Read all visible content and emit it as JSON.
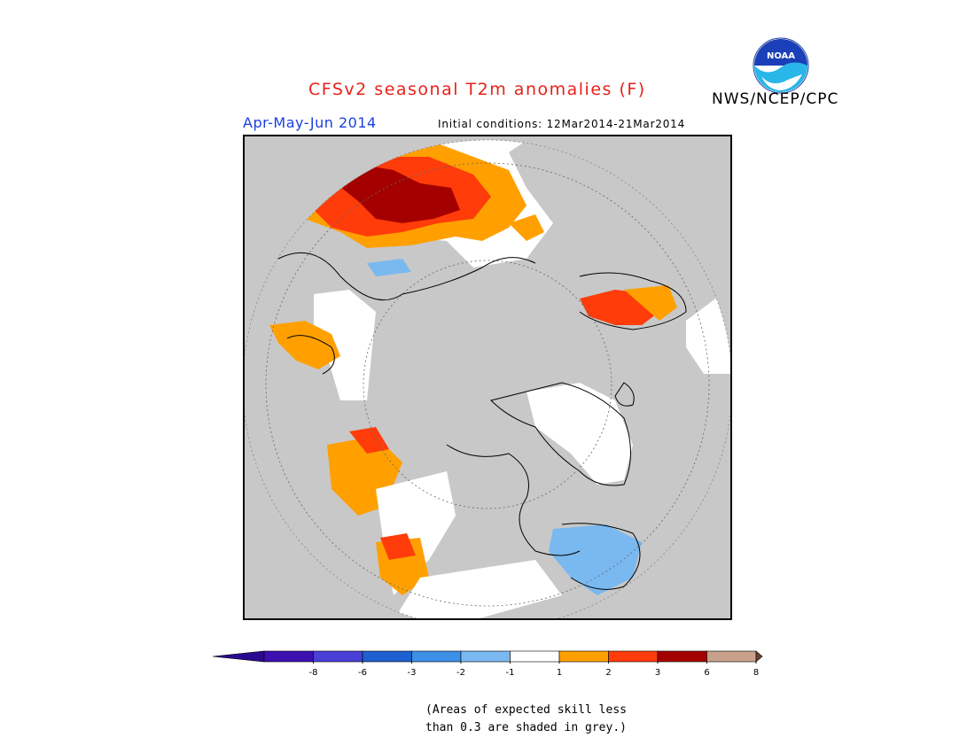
{
  "header": {
    "title": "CFSv2 seasonal T2m anomalies (F)",
    "org": "NWS/NCEP/CPC",
    "logo_text": "NOAA",
    "period": "Apr-May-Jun 2014",
    "initial_conditions": "Initial conditions: 12Mar2014-21Mar2014"
  },
  "legend": {
    "ticks": [
      "-8",
      "-6",
      "-3",
      "-2",
      "-1",
      "1",
      "2",
      "3",
      "6",
      "8"
    ],
    "colors": [
      "#3c0fb0",
      "#4a3fd6",
      "#1e60d0",
      "#3c90e8",
      "#7ab8f0",
      "#ffffff",
      "#ffa000",
      "#ff3c0a",
      "#a50000",
      "#c8a08c"
    ],
    "under_color": "#2a0a90",
    "over_color": "#6b4232"
  },
  "note": {
    "line1": "(Areas of expected skill less",
    "line2": "than 0.3 are shaded in grey.)"
  },
  "map": {
    "projection": "north polar stereographic",
    "grey_color": "#c8c8c8",
    "frame_color": "#000000"
  }
}
